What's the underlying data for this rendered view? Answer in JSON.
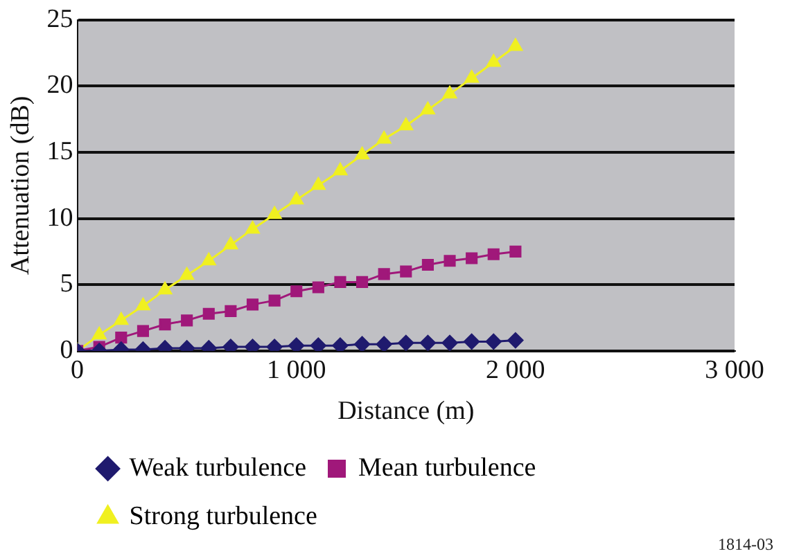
{
  "chart_data": {
    "type": "line",
    "xlabel": "Distance (m)",
    "ylabel": "Attenuation (dB)",
    "x": [
      0,
      100,
      200,
      300,
      400,
      500,
      600,
      700,
      800,
      900,
      1000,
      1100,
      1200,
      1300,
      1400,
      1500,
      1600,
      1700,
      1800,
      1900,
      2000
    ],
    "series": [
      {
        "name": "Weak turbulence",
        "color": "#1f1a6e",
        "marker": "diamond",
        "values": [
          0,
          0,
          0.1,
          0.1,
          0.2,
          0.2,
          0.2,
          0.3,
          0.3,
          0.3,
          0.4,
          0.4,
          0.4,
          0.5,
          0.5,
          0.6,
          0.6,
          0.6,
          0.7,
          0.7,
          0.8
        ]
      },
      {
        "name": "Mean turbulence",
        "color": "#a0187a",
        "marker": "square",
        "values": [
          0,
          0.3,
          1,
          1.5,
          2,
          2.3,
          2.8,
          3,
          3.5,
          3.8,
          4.5,
          4.8,
          5.2,
          5.2,
          5.8,
          6,
          6.5,
          6.8,
          7,
          7.3,
          7.5
        ]
      },
      {
        "name": "Strong turbulence",
        "color": "#f0f020",
        "marker": "triangle",
        "values": [
          0,
          1.2,
          2.3,
          3.4,
          4.6,
          5.7,
          6.8,
          8,
          9.2,
          10.3,
          11.4,
          12.5,
          13.6,
          14.8,
          16,
          17,
          18.2,
          19.4,
          20.6,
          21.8,
          23
        ]
      }
    ],
    "xlim": [
      0,
      3000
    ],
    "xticks": [
      0,
      {
        "value": 1000,
        "label": "1 000"
      },
      {
        "value": 2000,
        "label": "2 000"
      },
      {
        "value": 3000,
        "label": "3 000"
      }
    ],
    "ylim": [
      0,
      25
    ],
    "yticks": [
      0,
      5,
      10,
      15,
      20,
      25
    ],
    "grid": "y",
    "legend": "bottom",
    "line_style": "solid",
    "annotations": [
      "1814-03"
    ]
  }
}
